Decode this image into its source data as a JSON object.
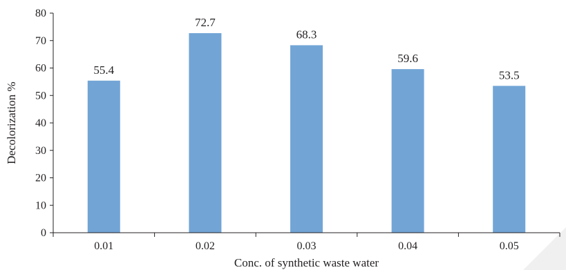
{
  "chart_data": {
    "type": "bar",
    "categories": [
      "0.01",
      "0.02",
      "0.03",
      "0.04",
      "0.05"
    ],
    "values": [
      55.4,
      72.7,
      68.3,
      59.6,
      53.5
    ],
    "data_labels": [
      "55.4",
      "72.7",
      "68.3",
      "59.6",
      "53.5"
    ],
    "xlabel": "Conc. of synthetic waste water",
    "ylabel": "Decolorization %",
    "ylim": [
      0,
      80
    ],
    "yticks": [
      "0",
      "10",
      "20",
      "30",
      "40",
      "50",
      "60",
      "70",
      "80"
    ],
    "bar_color": "#72a5d6",
    "axis_color": "#231f20",
    "grid": false,
    "legend": "none"
  }
}
